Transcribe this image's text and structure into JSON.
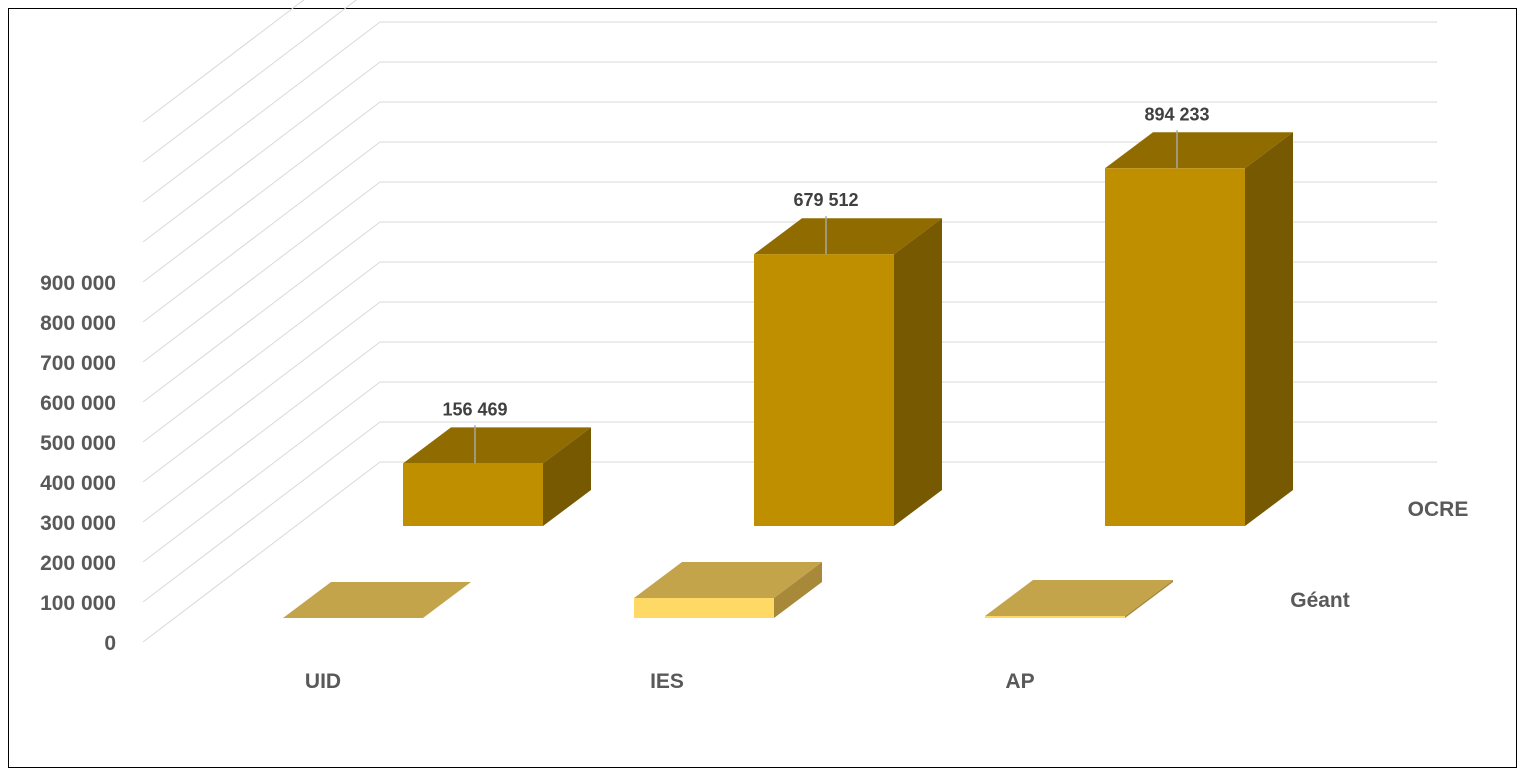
{
  "chart_data": {
    "type": "bar",
    "subtype": "3d-clustered-depth",
    "categories": [
      "UID",
      "IES",
      "AP"
    ],
    "series": [
      {
        "name": "OCRE",
        "values": [
          156469,
          679512,
          894233
        ],
        "labels": [
          "156 469",
          "679 512",
          "894 233"
        ],
        "color": "#BF8F00"
      },
      {
        "name": "Géant",
        "values": [
          0,
          50000,
          5000
        ],
        "color": "#FFD966"
      }
    ],
    "y_ticks": [
      "0",
      "100 000",
      "200 000",
      "300 000",
      "400 000",
      "500 000",
      "600 000",
      "700 000",
      "800 000",
      "900 000"
    ],
    "ylim": [
      0,
      900000
    ],
    "grid": true,
    "legend": "none"
  }
}
